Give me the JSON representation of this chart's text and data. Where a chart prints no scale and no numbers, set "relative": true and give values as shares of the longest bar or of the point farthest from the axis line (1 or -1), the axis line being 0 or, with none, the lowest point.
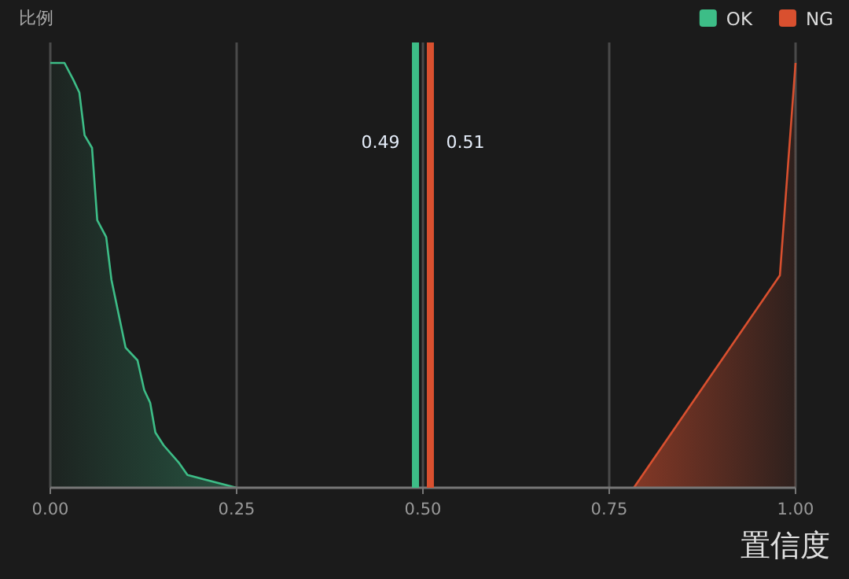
{
  "chart_data": {
    "type": "area",
    "relative": true,
    "ylabel": "比例",
    "xlabel": "置信度",
    "xlim": [
      0,
      1
    ],
    "xticks": [
      {
        "value": 0,
        "label": "0.00"
      },
      {
        "value": 0.25,
        "label": "0.25"
      },
      {
        "value": 0.5,
        "label": "0.50"
      },
      {
        "value": 0.75,
        "label": "0.75"
      },
      {
        "value": 1,
        "label": "1.00"
      }
    ],
    "grid": "x",
    "legend": "top right",
    "series": [
      {
        "name": "OK",
        "color": "#3dbd87",
        "x": [
          0,
          0.019,
          0.031,
          0.039,
          0.046,
          0.056,
          0.063,
          0.075,
          0.082,
          0.101,
          0.117,
          0.126,
          0.134,
          0.141,
          0.152,
          0.172,
          0.184,
          0.25
        ],
        "values": [
          1,
          1,
          0.96,
          0.93,
          0.83,
          0.8,
          0.63,
          0.59,
          0.49,
          0.33,
          0.3,
          0.23,
          0.2,
          0.13,
          0.1,
          0.06,
          0.03,
          0
        ]
      },
      {
        "name": "NG",
        "color": "#d9502f",
        "x": [
          0.783,
          0.979,
          1
        ],
        "values": [
          0,
          0.5,
          1
        ]
      }
    ],
    "ref_lines": [
      {
        "axis": "x",
        "value": 0.49,
        "label": "0.49",
        "color": "#3dbd87"
      },
      {
        "axis": "x",
        "value": 0.51,
        "label": "0.51",
        "color": "#d9502f"
      }
    ]
  }
}
